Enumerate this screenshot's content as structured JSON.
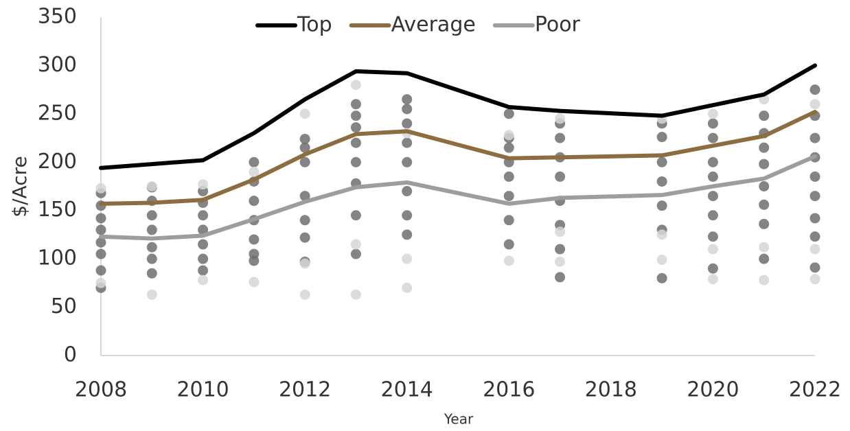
{
  "chart_data": {
    "type": "line",
    "x_label": "Year",
    "y_label": "$/Acre",
    "x": [
      2008,
      2009,
      2010,
      2011,
      2012,
      2013,
      2014,
      2016,
      2017,
      2019,
      2020,
      2021,
      2022
    ],
    "xlim": [
      2008,
      2022
    ],
    "xticks": [
      2008,
      2010,
      2012,
      2014,
      2016,
      2018,
      2020,
      2022
    ],
    "ylim": [
      0,
      350
    ],
    "yticks": [
      0,
      50,
      100,
      150,
      200,
      250,
      300,
      350
    ],
    "grid": false,
    "legend": "top",
    "series": [
      {
        "type": "scatter",
        "color": "#6e6e6e",
        "x": [
          2008,
          2008,
          2008,
          2008,
          2008,
          2008,
          2008,
          2008,
          2009,
          2009,
          2009,
          2009,
          2009,
          2009,
          2009,
          2010,
          2010,
          2010,
          2010,
          2010,
          2010,
          2010,
          2011,
          2011,
          2011,
          2011,
          2011,
          2011,
          2011,
          2012,
          2012,
          2012,
          2012,
          2012,
          2012,
          2012,
          2013,
          2013,
          2013,
          2013,
          2013,
          2013,
          2013,
          2013,
          2014,
          2014,
          2014,
          2014,
          2014,
          2014,
          2014,
          2014,
          2016,
          2016,
          2016,
          2016,
          2016,
          2016,
          2016,
          2016,
          2017,
          2017,
          2017,
          2017,
          2017,
          2017,
          2017,
          2017,
          2019,
          2019,
          2019,
          2019,
          2019,
          2019,
          2019,
          2020,
          2020,
          2020,
          2020,
          2020,
          2020,
          2020,
          2020,
          2021,
          2021,
          2021,
          2021,
          2021,
          2021,
          2021,
          2021,
          2022,
          2022,
          2022,
          2022,
          2022,
          2022,
          2022,
          2022,
          2022
        ],
        "values": [
          70,
          88,
          105,
          117,
          130,
          142,
          155,
          168,
          85,
          100,
          112,
          130,
          145,
          160,
          174,
          88,
          100,
          115,
          130,
          145,
          158,
          170,
          98,
          105,
          120,
          140,
          160,
          180,
          200,
          97,
          122,
          140,
          165,
          200,
          215,
          224,
          105,
          145,
          178,
          200,
          220,
          236,
          248,
          260,
          125,
          145,
          170,
          200,
          220,
          240,
          255,
          265,
          115,
          140,
          165,
          185,
          200,
          215,
          225,
          250,
          81,
          110,
          135,
          160,
          185,
          205,
          225,
          240,
          80,
          130,
          155,
          180,
          200,
          226,
          240,
          90,
          123,
          145,
          165,
          185,
          200,
          225,
          240,
          100,
          136,
          156,
          175,
          198,
          215,
          230,
          248,
          91,
          123,
          142,
          165,
          185,
          205,
          225,
          248,
          275
        ]
      },
      {
        "type": "scatter",
        "color": "#d6d6d6",
        "x": [
          2008,
          2008,
          2009,
          2009,
          2010,
          2010,
          2011,
          2011,
          2012,
          2012,
          2012,
          2013,
          2013,
          2013,
          2014,
          2014,
          2014,
          2016,
          2016,
          2017,
          2017,
          2017,
          2019,
          2019,
          2019,
          2020,
          2020,
          2020,
          2021,
          2021,
          2021,
          2022,
          2022,
          2022
        ],
        "values": [
          75,
          173,
          63,
          175,
          78,
          177,
          76,
          190,
          63,
          95,
          250,
          63,
          115,
          280,
          70,
          100,
          230,
          98,
          228,
          97,
          128,
          245,
          99,
          125,
          245,
          79,
          110,
          250,
          78,
          112,
          265,
          79,
          110,
          260
        ]
      },
      {
        "name": "Top",
        "color": "#000000",
        "values": [
          194,
          198,
          202,
          230,
          265,
          294,
          292,
          257,
          253,
          248,
          259,
          270,
          300
        ]
      },
      {
        "name": "Average",
        "color": "#8c6d3f",
        "values": [
          157,
          158,
          161,
          182,
          208,
          229,
          232,
          204,
          205,
          207,
          217,
          227,
          252
        ]
      },
      {
        "name": "Poor",
        "color": "#a09c9a",
        "values": [
          123,
          121,
          124,
          141,
          159,
          174,
          179,
          157,
          163,
          166,
          175,
          183,
          206
        ]
      }
    ]
  }
}
